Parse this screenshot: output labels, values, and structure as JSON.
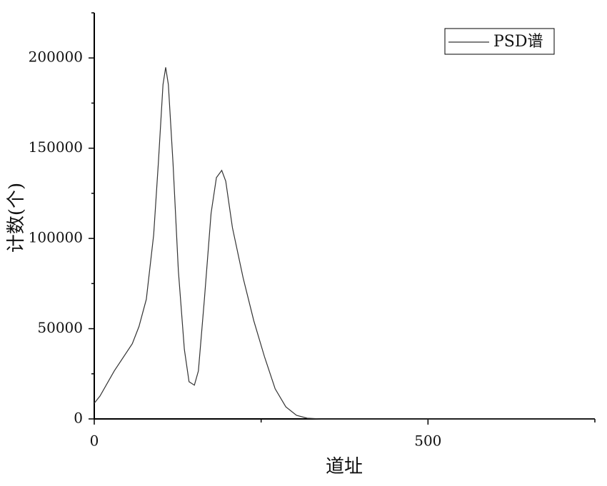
{
  "chart_data": {
    "type": "line",
    "x_label": "道址",
    "y_label": "计数(个)",
    "x": [
      0,
      8.6,
      30,
      57,
      67,
      78,
      89,
      96,
      103,
      107,
      111,
      118,
      126,
      135,
      142,
      150,
      156,
      165,
      175,
      183,
      191,
      197,
      207,
      223,
      239,
      255,
      271,
      287,
      303,
      319,
      340,
      500,
      750
    ],
    "series": [
      {
        "name": "PSD谱",
        "color": "#333333",
        "values": [
          8700,
          12700,
          26600,
          41700,
          51200,
          66300,
          102000,
          141700,
          185300,
          194800,
          185300,
          141700,
          82100,
          38500,
          20600,
          18700,
          26600,
          66300,
          113900,
          133700,
          137700,
          131700,
          106000,
          78200,
          54400,
          34500,
          16700,
          6700,
          2000,
          400,
          0,
          0,
          0
        ]
      }
    ],
    "xlim": [
      0,
      750
    ],
    "xticks": [
      0,
      500
    ],
    "xminorticks": [
      250,
      750
    ],
    "ylim": [
      0,
      225000
    ],
    "yticks": [
      0,
      50000,
      100000,
      150000,
      200000
    ],
    "yminorticks": [
      25000,
      75000,
      125000,
      175000,
      225000
    ],
    "legend": "top-right"
  }
}
